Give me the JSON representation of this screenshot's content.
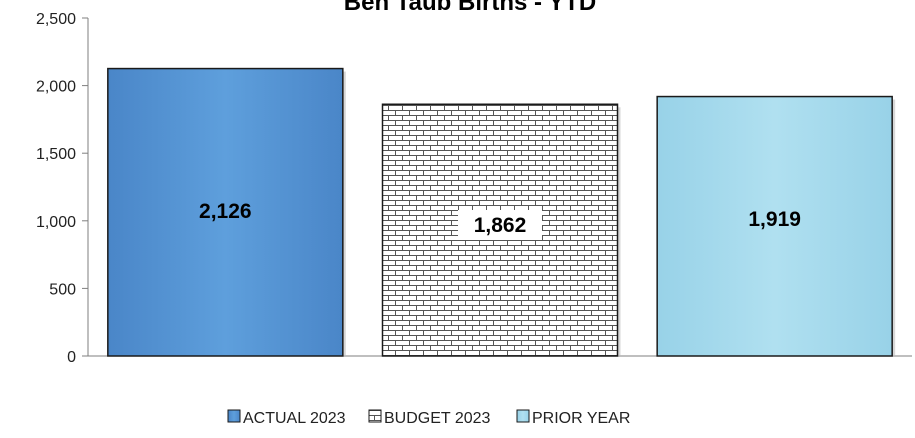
{
  "chart_data": {
    "type": "bar",
    "title": "Ben Taub Births - YTD",
    "categories": [
      "ACTUAL 2023",
      "BUDGET 2023",
      "PRIOR YEAR"
    ],
    "values": [
      2126,
      1862,
      1919
    ],
    "value_labels": [
      "2,126",
      "1,862",
      "1,919"
    ],
    "ylim": [
      0,
      2500
    ],
    "yticks": [
      0,
      500,
      1000,
      1500,
      2000,
      2500
    ],
    "ytick_labels": [
      "0",
      "500",
      "1,000",
      "1,500",
      "2,000",
      "2,500"
    ],
    "xlabel": "",
    "ylabel": "",
    "grid": false,
    "legend_position": "bottom",
    "series_styles": [
      {
        "fill": "#5b9bd5",
        "pattern": "solid"
      },
      {
        "fill": "#ffffff",
        "pattern": "brick"
      },
      {
        "fill": "#a8dcee",
        "pattern": "solid"
      }
    ]
  }
}
